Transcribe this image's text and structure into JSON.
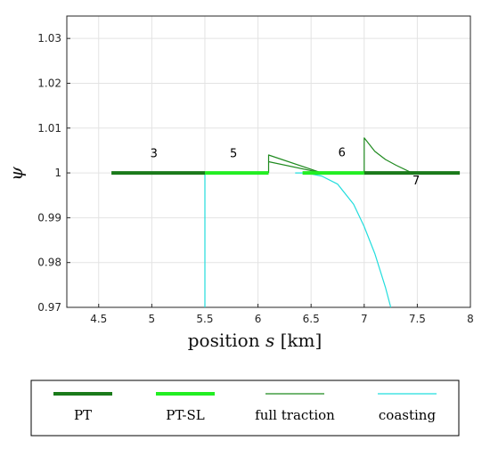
{
  "chart_data": {
    "type": "line",
    "xlabel_main": "position ",
    "xlabel_var": "s",
    "xlabel_unit": " [km]",
    "ylabel": "ψ",
    "xlim": [
      4.2,
      8
    ],
    "ylim": [
      0.97,
      1.035
    ],
    "xticks": [
      4.5,
      5,
      5.5,
      6,
      6.5,
      7,
      7.5,
      8
    ],
    "xtick_labels": [
      "4.5",
      "5",
      "5.5",
      "6",
      "6.5",
      "7",
      "7.5",
      "8"
    ],
    "yticks": [
      0.97,
      0.98,
      0.99,
      1.0,
      1.01,
      1.02,
      1.03
    ],
    "ytick_labels": [
      "0.97",
      "0.98",
      "0.99",
      "1",
      "1.01",
      "1.02",
      "1.03"
    ],
    "grid": true,
    "legend_position": "bottom",
    "colors": {
      "PT": "#1a7a1a",
      "PT-SL": "#22ee22",
      "full traction": "#1f8a1f",
      "coasting": "#22dddd"
    },
    "series": [
      {
        "name": "PT",
        "style": "thick",
        "segments": [
          [
            [
              4.62,
              1.0
            ],
            [
              5.5,
              1.0
            ]
          ],
          [
            [
              7.0,
              1.0
            ],
            [
              7.9,
              1.0
            ]
          ]
        ]
      },
      {
        "name": "PT-SL",
        "style": "thick",
        "segments": [
          [
            [
              5.5,
              1.0
            ],
            [
              6.1,
              1.0
            ]
          ],
          [
            [
              6.42,
              1.0
            ],
            [
              7.0,
              1.0
            ]
          ]
        ]
      },
      {
        "name": "full traction",
        "style": "thin",
        "segments": [
          [
            [
              6.1,
              1.0
            ],
            [
              6.1,
              1.004
            ],
            [
              6.6,
              1.0
            ]
          ],
          [
            [
              6.1,
              1.0025
            ],
            [
              6.6,
              1.0
            ]
          ],
          [
            [
              7.0,
              1.0
            ],
            [
              7.0,
              1.0078
            ],
            [
              7.1,
              1.0048
            ],
            [
              7.2,
              1.003
            ],
            [
              7.3,
              1.0017
            ],
            [
              7.45,
              1.0
            ]
          ]
        ]
      },
      {
        "name": "coasting",
        "style": "thin",
        "segments": [
          [
            [
              5.5,
              1.0
            ],
            [
              5.5,
              0.97
            ]
          ],
          [
            [
              6.35,
              1.0
            ],
            [
              6.45,
              1.0
            ],
            [
              6.6,
              0.9993
            ],
            [
              6.75,
              0.9975
            ],
            [
              6.9,
              0.993
            ],
            [
              7.0,
              0.988
            ],
            [
              7.1,
              0.982
            ],
            [
              7.2,
              0.9745
            ],
            [
              7.25,
              0.97
            ]
          ]
        ]
      }
    ],
    "annotations": [
      {
        "text": "3",
        "x": 5.02,
        "y": 1.0035
      },
      {
        "text": "5",
        "x": 5.77,
        "y": 1.0035
      },
      {
        "text": "6",
        "x": 6.79,
        "y": 1.0037
      },
      {
        "text": "7",
        "x": 7.49,
        "y": 0.9974
      }
    ],
    "legend": [
      "PT",
      "PT-SL",
      "full traction",
      "coasting"
    ]
  }
}
